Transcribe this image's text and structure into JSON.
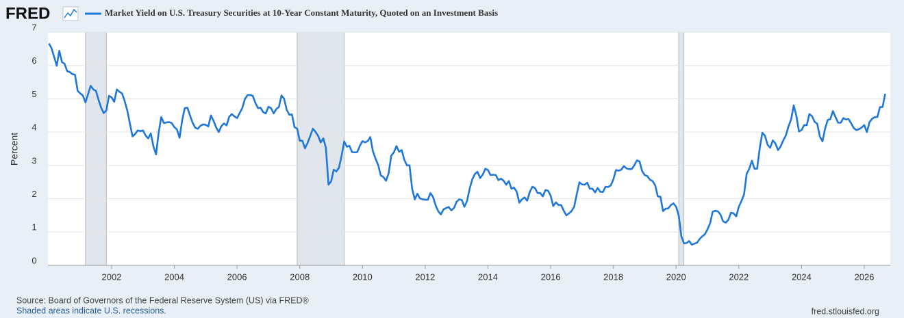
{
  "chart_data": {
    "type": "line",
    "logo": "FRED",
    "title": "Market Yield on U.S. Treasury Securities at 10-Year Constant Maturity, Quoted on an Investment Basis",
    "ylabel": "Percent",
    "source": "Source: Board of Governors of the Federal Reserve System (US) via FRED®",
    "shading_note": "Shaded areas indicate U.S. recessions.",
    "credit": "fred.stlouisfed.org",
    "xlim": [
      1999.97,
      2026.83
    ],
    "xticks": [
      2002,
      2004,
      2006,
      2008,
      2010,
      2012,
      2014,
      2016,
      2018,
      2020,
      2022,
      2024,
      2026
    ],
    "ylim": [
      0,
      7
    ],
    "yticks": [
      0,
      1,
      2,
      3,
      4,
      5,
      6,
      7
    ],
    "grid": true,
    "recessions": [
      [
        2001.167,
        2001.833
      ],
      [
        2007.917,
        2009.417
      ],
      [
        2020.083,
        2020.25
      ]
    ],
    "x": [
      2000.0,
      2000.083,
      2000.167,
      2000.25,
      2000.333,
      2000.417,
      2000.5,
      2000.583,
      2000.667,
      2000.75,
      2000.833,
      2000.917,
      2001.0,
      2001.083,
      2001.167,
      2001.25,
      2001.333,
      2001.417,
      2001.5,
      2001.583,
      2001.667,
      2001.75,
      2001.833,
      2001.917,
      2002.0,
      2002.083,
      2002.167,
      2002.25,
      2002.333,
      2002.417,
      2002.5,
      2002.583,
      2002.667,
      2002.75,
      2002.833,
      2002.917,
      2003.0,
      2003.083,
      2003.167,
      2003.25,
      2003.333,
      2003.417,
      2003.5,
      2003.583,
      2003.667,
      2003.75,
      2003.833,
      2003.917,
      2004.0,
      2004.083,
      2004.167,
      2004.25,
      2004.333,
      2004.417,
      2004.5,
      2004.583,
      2004.667,
      2004.75,
      2004.833,
      2004.917,
      2005.0,
      2005.083,
      2005.167,
      2005.25,
      2005.333,
      2005.417,
      2005.5,
      2005.583,
      2005.667,
      2005.75,
      2005.833,
      2005.917,
      2006.0,
      2006.083,
      2006.167,
      2006.25,
      2006.333,
      2006.417,
      2006.5,
      2006.583,
      2006.667,
      2006.75,
      2006.833,
      2006.917,
      2007.0,
      2007.083,
      2007.167,
      2007.25,
      2007.333,
      2007.417,
      2007.5,
      2007.583,
      2007.667,
      2007.75,
      2007.833,
      2007.917,
      2008.0,
      2008.083,
      2008.167,
      2008.25,
      2008.333,
      2008.417,
      2008.5,
      2008.583,
      2008.667,
      2008.75,
      2008.833,
      2008.917,
      2009.0,
      2009.083,
      2009.167,
      2009.25,
      2009.333,
      2009.417,
      2009.5,
      2009.583,
      2009.667,
      2009.75,
      2009.833,
      2009.917,
      2010.0,
      2010.083,
      2010.167,
      2010.25,
      2010.333,
      2010.417,
      2010.5,
      2010.583,
      2010.667,
      2010.75,
      2010.833,
      2010.917,
      2011.0,
      2011.083,
      2011.167,
      2011.25,
      2011.333,
      2011.417,
      2011.5,
      2011.583,
      2011.667,
      2011.75,
      2011.833,
      2011.917,
      2012.0,
      2012.083,
      2012.167,
      2012.25,
      2012.333,
      2012.417,
      2012.5,
      2012.583,
      2012.667,
      2012.75,
      2012.833,
      2012.917,
      2013.0,
      2013.083,
      2013.167,
      2013.25,
      2013.333,
      2013.417,
      2013.5,
      2013.583,
      2013.667,
      2013.75,
      2013.833,
      2013.917,
      2014.0,
      2014.083,
      2014.167,
      2014.25,
      2014.333,
      2014.417,
      2014.5,
      2014.583,
      2014.667,
      2014.75,
      2014.833,
      2014.917,
      2015.0,
      2015.083,
      2015.167,
      2015.25,
      2015.333,
      2015.417,
      2015.5,
      2015.583,
      2015.667,
      2015.75,
      2015.833,
      2015.917,
      2016.0,
      2016.083,
      2016.167,
      2016.25,
      2016.333,
      2016.417,
      2016.5,
      2016.583,
      2016.667,
      2016.75,
      2016.833,
      2016.917,
      2017.0,
      2017.083,
      2017.167,
      2017.25,
      2017.333,
      2017.417,
      2017.5,
      2017.583,
      2017.667,
      2017.75,
      2017.833,
      2017.917,
      2018.0,
      2018.083,
      2018.167,
      2018.25,
      2018.333,
      2018.417,
      2018.5,
      2018.583,
      2018.667,
      2018.75,
      2018.833,
      2018.917,
      2019.0,
      2019.083,
      2019.167,
      2019.25,
      2019.333,
      2019.417,
      2019.5,
      2019.583,
      2019.667,
      2019.75,
      2019.833,
      2019.917,
      2020.0,
      2020.083,
      2020.167,
      2020.25,
      2020.333,
      2020.417,
      2020.5,
      2020.583,
      2020.667,
      2020.75,
      2020.833,
      2020.917,
      2021.0,
      2021.083,
      2021.167,
      2021.25,
      2021.333,
      2021.417,
      2021.5,
      2021.583,
      2021.667,
      2021.75,
      2021.833,
      2021.917,
      2022.0,
      2022.083,
      2022.167,
      2022.25,
      2022.333,
      2022.417,
      2022.5,
      2022.583,
      2022.667,
      2022.75,
      2022.833,
      2022.917,
      2023.0,
      2023.083,
      2023.167,
      2023.25,
      2023.333,
      2023.417,
      2023.5,
      2023.583,
      2023.667,
      2023.75,
      2023.833,
      2023.917,
      2024.0,
      2024.083,
      2024.167,
      2024.25,
      2024.333,
      2024.417,
      2024.5,
      2024.583,
      2024.667,
      2024.75,
      2024.833,
      2024.917,
      2025.0,
      2025.083,
      2025.167,
      2025.25,
      2025.333,
      2025.417,
      2025.5,
      2025.583,
      2025.667,
      2025.75,
      2025.833,
      2025.917,
      2026.0,
      2026.083,
      2026.167,
      2026.25,
      2026.333,
      2026.417,
      2026.5,
      2026.583,
      2026.667
    ],
    "series": [
      {
        "name": "Market Yield on U.S. Treasury Securities at 10-Year Constant Maturity, Quoted on an Investment Basis",
        "color": "#1f78d9",
        "values": [
          6.66,
          6.52,
          6.26,
          5.99,
          6.44,
          6.1,
          6.05,
          5.83,
          5.8,
          5.74,
          5.72,
          5.24,
          5.16,
          5.1,
          4.89,
          5.14,
          5.39,
          5.28,
          5.24,
          4.97,
          4.73,
          4.57,
          4.65,
          5.09,
          5.04,
          4.91,
          5.28,
          5.21,
          5.16,
          4.93,
          4.65,
          4.26,
          3.87,
          3.94,
          4.05,
          4.03,
          4.05,
          3.9,
          3.81,
          3.96,
          3.57,
          3.33,
          3.98,
          4.45,
          4.27,
          4.29,
          4.3,
          4.27,
          4.15,
          4.08,
          3.83,
          4.35,
          4.72,
          4.73,
          4.5,
          4.28,
          4.13,
          4.1,
          4.19,
          4.23,
          4.22,
          4.17,
          4.5,
          4.34,
          4.14,
          4.0,
          4.18,
          4.26,
          4.2,
          4.46,
          4.54,
          4.47,
          4.42,
          4.57,
          4.72,
          4.99,
          5.11,
          5.11,
          5.09,
          4.88,
          4.72,
          4.73,
          4.6,
          4.56,
          4.76,
          4.72,
          4.56,
          4.69,
          4.75,
          5.1,
          5.0,
          4.67,
          4.52,
          4.53,
          4.15,
          4.1,
          3.74,
          3.74,
          3.51,
          3.68,
          3.88,
          4.1,
          4.01,
          3.89,
          3.69,
          3.81,
          3.53,
          2.42,
          2.52,
          2.87,
          2.82,
          2.93,
          3.29,
          3.72,
          3.56,
          3.59,
          3.4,
          3.39,
          3.4,
          3.59,
          3.73,
          3.69,
          3.73,
          3.85,
          3.42,
          3.2,
          3.01,
          2.7,
          2.65,
          2.54,
          2.76,
          3.29,
          3.39,
          3.58,
          3.41,
          3.46,
          3.17,
          3.0,
          3.0,
          2.3,
          1.98,
          2.15,
          2.01,
          1.98,
          1.97,
          1.97,
          2.17,
          2.05,
          1.8,
          1.62,
          1.53,
          1.68,
          1.72,
          1.75,
          1.65,
          1.72,
          1.91,
          1.98,
          1.96,
          1.76,
          1.93,
          2.3,
          2.58,
          2.74,
          2.81,
          2.62,
          2.72,
          2.9,
          2.86,
          2.71,
          2.72,
          2.71,
          2.56,
          2.6,
          2.54,
          2.42,
          2.53,
          2.3,
          2.33,
          2.21,
          1.88,
          1.98,
          2.04,
          1.94,
          2.2,
          2.36,
          2.32,
          2.17,
          2.17,
          2.07,
          2.26,
          2.24,
          2.09,
          1.78,
          1.89,
          1.81,
          1.81,
          1.64,
          1.5,
          1.56,
          1.63,
          1.76,
          2.14,
          2.49,
          2.43,
          2.42,
          2.48,
          2.3,
          2.3,
          2.19,
          2.32,
          2.21,
          2.2,
          2.36,
          2.35,
          2.4,
          2.58,
          2.86,
          2.84,
          2.87,
          2.98,
          2.91,
          2.89,
          2.89,
          3.0,
          3.15,
          3.12,
          2.83,
          2.71,
          2.68,
          2.57,
          2.53,
          2.4,
          2.07,
          2.06,
          1.63,
          1.7,
          1.71,
          1.81,
          1.86,
          1.76,
          1.5,
          0.87,
          0.66,
          0.67,
          0.73,
          0.62,
          0.65,
          0.68,
          0.79,
          0.87,
          0.93,
          1.08,
          1.26,
          1.61,
          1.64,
          1.62,
          1.52,
          1.32,
          1.28,
          1.37,
          1.58,
          1.56,
          1.47,
          1.76,
          1.93,
          2.13,
          2.75,
          2.9,
          3.14,
          2.9,
          2.9,
          3.52,
          3.98,
          3.89,
          3.62,
          3.53,
          3.75,
          3.66,
          3.46,
          3.57,
          3.75,
          3.9,
          4.17,
          4.38,
          4.8,
          4.5,
          4.02,
          4.06,
          4.21,
          4.21,
          4.54,
          4.48,
          4.31,
          4.25,
          3.87,
          3.72,
          4.1,
          4.36,
          4.39,
          4.63,
          4.45,
          4.28,
          4.28,
          4.42,
          4.38,
          4.39,
          4.26,
          4.12,
          4.06,
          4.09,
          4.14,
          4.21,
          4.0,
          4.3,
          4.4,
          4.45,
          4.45,
          4.75,
          4.75,
          5.15
        ]
      }
    ]
  }
}
